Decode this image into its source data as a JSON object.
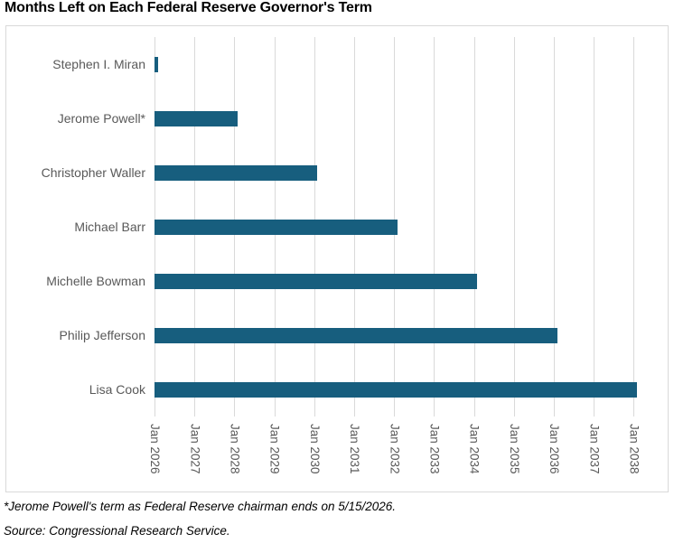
{
  "title": "Months Left on Each Federal Reserve Governor's Term",
  "footnotes": [
    "*Jerome Powell's term as Federal Reserve chairman ends on 5/15/2026.",
    "Source: Congressional Research Service."
  ],
  "colors": {
    "bar": "#175e7e",
    "gridline": "#d9d9d9",
    "frame_border": "#d9d9d9",
    "axis_text": "#595959",
    "title_text": "#000000"
  },
  "chart_data": {
    "type": "bar",
    "orientation": "horizontal",
    "title": "Months Left on Each Federal Reserve Governor's Term",
    "categories": [
      "Stephen I. Miran",
      "Jerome Powell*",
      "Christopher Waller",
      "Michael Barr",
      "Michelle Bowman",
      "Philip Jefferson",
      "Lisa Cook"
    ],
    "values_months_after_jan_2026": [
      1,
      25,
      49,
      73,
      97,
      121,
      145
    ],
    "x_axis": {
      "tick_labels": [
        "Jan 2026",
        "Jan 2027",
        "Jan 2028",
        "Jan 2029",
        "Jan 2030",
        "Jan 2031",
        "Jan 2032",
        "Jan 2033",
        "Jan 2034",
        "Jan 2035",
        "Jan 2036",
        "Jan 2037",
        "Jan 2038"
      ],
      "tick_interval_months": 12,
      "tick_label_rotation_deg": 90,
      "range_months": [
        0,
        155
      ]
    },
    "xlabel": "",
    "ylabel": "",
    "grid": "vertical-only",
    "legend": "none",
    "bars_start_at": "Jan 2026"
  }
}
